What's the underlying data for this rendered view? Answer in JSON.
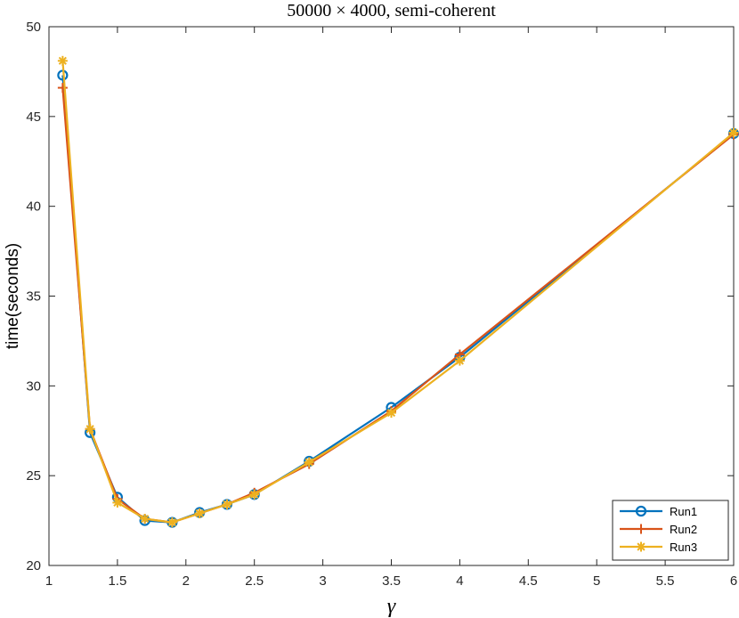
{
  "chart_data": {
    "type": "line",
    "title": "50000 × 4000, semi-coherent",
    "xlabel": "γ",
    "ylabel": "time(seconds)",
    "xlim": [
      1,
      6
    ],
    "ylim": [
      20,
      50
    ],
    "x_ticks": [
      "1",
      "1.5",
      "2",
      "2.5",
      "3",
      "3.5",
      "4",
      "4.5",
      "5",
      "5.5",
      "6"
    ],
    "y_ticks": [
      "20",
      "25",
      "30",
      "35",
      "40",
      "45",
      "50"
    ],
    "grid": false,
    "legend_position": "bottom-right",
    "x": [
      1.1,
      1.3,
      1.5,
      1.7,
      1.9,
      2.1,
      2.3,
      2.5,
      2.9,
      3.5,
      4.0,
      6.0
    ],
    "series": [
      {
        "name": "Run1",
        "marker": "circle",
        "color": "#0072BD",
        "values": [
          47.3,
          27.4,
          23.8,
          22.5,
          22.4,
          22.95,
          23.4,
          23.95,
          25.8,
          28.8,
          31.6,
          44.05
        ]
      },
      {
        "name": "Run2",
        "marker": "plus",
        "color": "#D95319",
        "values": [
          46.6,
          27.6,
          23.7,
          22.6,
          22.4,
          22.9,
          23.4,
          24.05,
          25.65,
          28.6,
          31.75,
          44.0
        ]
      },
      {
        "name": "Run3",
        "marker": "asterisk",
        "color": "#EDB120",
        "values": [
          48.1,
          27.6,
          23.5,
          22.6,
          22.4,
          22.9,
          23.4,
          23.95,
          25.75,
          28.5,
          31.4,
          44.1
        ]
      }
    ]
  }
}
